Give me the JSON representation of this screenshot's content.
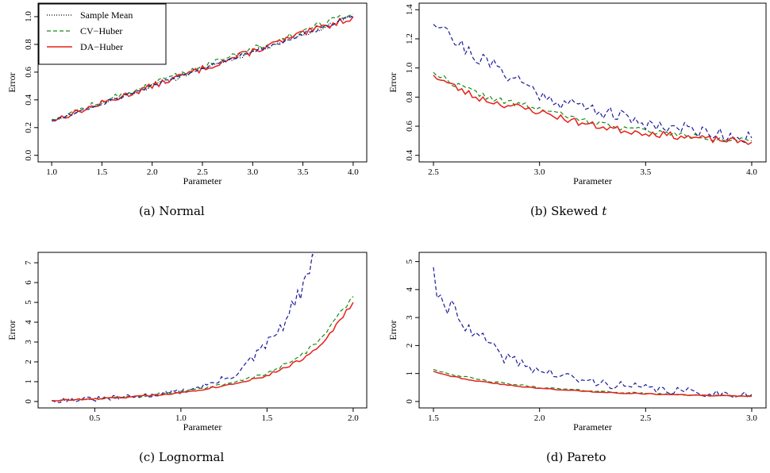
{
  "chart_data": [
    {
      "type": "line",
      "panel": "a",
      "caption": "(a)  Normal",
      "xlabel": "Parameter",
      "ylabel": "Error",
      "xlim": [
        1.0,
        4.0
      ],
      "ylim": [
        0.0,
        1.05
      ],
      "xticks": [
        "1.0",
        "1.5",
        "2.0",
        "2.5",
        "3.0",
        "3.5",
        "4.0"
      ],
      "yticks": [
        "0.0",
        "0.2",
        "0.4",
        "0.6",
        "0.8",
        "1.0"
      ],
      "legend": [
        "Sample Mean",
        "CV−Huber",
        "DA−Huber"
      ],
      "legend_position": "top-left",
      "series": [
        {
          "name": "Sample Mean",
          "style": "dotted",
          "color": "#000000",
          "x": [
            1.0,
            4.0
          ],
          "y": [
            0.25,
            1.0
          ],
          "noise": 0.015,
          "seed": 11
        },
        {
          "name": "CV−Huber",
          "style": "dashed",
          "color": "#1a8a1a",
          "x": [
            1.0,
            4.0
          ],
          "y": [
            0.26,
            1.02
          ],
          "noise": 0.018,
          "seed": 12
        },
        {
          "name": "DA−Huber",
          "style": "solid",
          "color": "#e8201a",
          "x": [
            1.0,
            4.0
          ],
          "y": [
            0.25,
            1.0
          ],
          "noise": 0.018,
          "seed": 13
        },
        {
          "name": "",
          "style": "dashed",
          "color": "#1a1a9a",
          "x": [
            1.0,
            4.0
          ],
          "y": [
            0.25,
            1.0
          ],
          "noise": 0.012,
          "seed": 14
        }
      ]
    },
    {
      "type": "line",
      "panel": "b",
      "caption": "(b)  Skewed",
      "caption_italic": "t",
      "xlabel": "Parameter",
      "ylabel": "Error",
      "xlim": [
        2.5,
        4.0
      ],
      "ylim": [
        0.4,
        1.4
      ],
      "xticks": [
        "2.5",
        "3.0",
        "3.5",
        "4.0"
      ],
      "yticks": [
        "0.4",
        "0.6",
        "0.8",
        "1.0",
        "1.2",
        "1.4"
      ],
      "series": [
        {
          "name": "",
          "style": "dashed",
          "color": "#1a1a9a",
          "x": [
            2.5,
            2.55,
            2.6,
            2.7,
            2.8,
            2.9,
            3.0,
            3.1,
            3.25,
            3.4,
            3.5,
            3.6,
            3.75,
            3.9,
            4.0
          ],
          "y": [
            1.3,
            1.32,
            1.18,
            1.08,
            1.0,
            0.92,
            0.82,
            0.77,
            0.72,
            0.66,
            0.62,
            0.6,
            0.57,
            0.54,
            0.52
          ],
          "noise": 0.035,
          "seed": 21
        },
        {
          "name": "",
          "style": "dashed",
          "color": "#1a8a1a",
          "x": [
            2.5,
            2.6,
            2.7,
            2.8,
            2.9,
            3.0,
            3.2,
            3.4,
            3.6,
            3.8,
            4.0
          ],
          "y": [
            0.97,
            0.89,
            0.83,
            0.78,
            0.75,
            0.72,
            0.64,
            0.59,
            0.55,
            0.52,
            0.5
          ],
          "noise": 0.015,
          "seed": 22
        },
        {
          "name": "",
          "style": "solid",
          "color": "#e8201a",
          "x": [
            2.5,
            2.6,
            2.7,
            2.8,
            2.9,
            3.0,
            3.2,
            3.4,
            3.6,
            3.8,
            4.0
          ],
          "y": [
            0.95,
            0.87,
            0.8,
            0.76,
            0.73,
            0.7,
            0.62,
            0.57,
            0.54,
            0.51,
            0.49
          ],
          "noise": 0.018,
          "seed": 23
        }
      ]
    },
    {
      "type": "line",
      "panel": "c",
      "caption": "(c)  Lognormal",
      "xlabel": "Parameter",
      "ylabel": "Error",
      "xlim": [
        0.25,
        2.0
      ],
      "ylim": [
        0,
        7.2
      ],
      "xticks": [
        "0.5",
        "1.0",
        "1.5",
        "2.0"
      ],
      "yticks": [
        "0",
        "1",
        "2",
        "3",
        "4",
        "5",
        "6",
        "7"
      ],
      "series": [
        {
          "name": "",
          "style": "dashed",
          "color": "#1a1a9a",
          "x": [
            0.25,
            0.5,
            0.75,
            1.0,
            1.2,
            1.3,
            1.4,
            1.5,
            1.55,
            1.6,
            1.65,
            1.7,
            1.75,
            1.78
          ],
          "y": [
            0.05,
            0.12,
            0.25,
            0.5,
            0.95,
            1.3,
            2.0,
            2.9,
            3.4,
            3.9,
            4.8,
            5.6,
            6.6,
            7.3
          ],
          "noise": 0.12,
          "seed": 31
        },
        {
          "name": "",
          "style": "dashed",
          "color": "#1a8a1a",
          "x": [
            0.25,
            0.5,
            0.75,
            1.0,
            1.25,
            1.5,
            1.7,
            1.8,
            1.9,
            2.0
          ],
          "y": [
            0.05,
            0.12,
            0.25,
            0.5,
            0.85,
            1.4,
            2.3,
            3.1,
            4.2,
            5.3
          ],
          "noise": 0.05,
          "seed": 32
        },
        {
          "name": "",
          "style": "solid",
          "color": "#e8201a",
          "x": [
            0.25,
            0.5,
            0.75,
            1.0,
            1.25,
            1.5,
            1.7,
            1.8,
            1.9,
            2.0
          ],
          "y": [
            0.05,
            0.12,
            0.25,
            0.45,
            0.8,
            1.3,
            2.1,
            2.8,
            3.8,
            5.0
          ],
          "noise": 0.04,
          "seed": 33
        }
      ]
    },
    {
      "type": "line",
      "panel": "d",
      "caption": "(d)  Pareto",
      "xlabel": "Parameter",
      "ylabel": "Error",
      "xlim": [
        1.5,
        3.0
      ],
      "ylim": [
        0,
        5.1
      ],
      "xticks": [
        "1.5",
        "2.0",
        "2.5",
        "3.0"
      ],
      "yticks": [
        "0",
        "1",
        "2",
        "3",
        "4",
        "5"
      ],
      "series": [
        {
          "name": "",
          "style": "dashed",
          "color": "#1a1a9a",
          "x": [
            1.5,
            1.52,
            1.55,
            1.6,
            1.65,
            1.7,
            1.75,
            1.8,
            1.9,
            2.0,
            2.2,
            2.4,
            2.6,
            2.8,
            3.0
          ],
          "y": [
            4.8,
            3.7,
            3.2,
            3.6,
            2.6,
            2.3,
            2.2,
            1.7,
            1.4,
            1.1,
            0.75,
            0.55,
            0.4,
            0.3,
            0.25
          ],
          "noise": 0.12,
          "seed": 41
        },
        {
          "name": "",
          "style": "dashed",
          "color": "#1a8a1a",
          "x": [
            1.5,
            1.6,
            1.7,
            1.8,
            2.0,
            2.2,
            2.4,
            2.6,
            2.8,
            3.0
          ],
          "y": [
            1.15,
            0.95,
            0.8,
            0.68,
            0.5,
            0.4,
            0.32,
            0.26,
            0.22,
            0.2
          ],
          "noise": 0.02,
          "seed": 42
        },
        {
          "name": "",
          "style": "solid",
          "color": "#e8201a",
          "x": [
            1.5,
            1.6,
            1.7,
            1.8,
            2.0,
            2.2,
            2.4,
            2.6,
            2.8,
            3.0
          ],
          "y": [
            1.08,
            0.88,
            0.74,
            0.63,
            0.47,
            0.37,
            0.3,
            0.25,
            0.21,
            0.19
          ],
          "noise": 0.015,
          "seed": 43
        }
      ]
    }
  ]
}
